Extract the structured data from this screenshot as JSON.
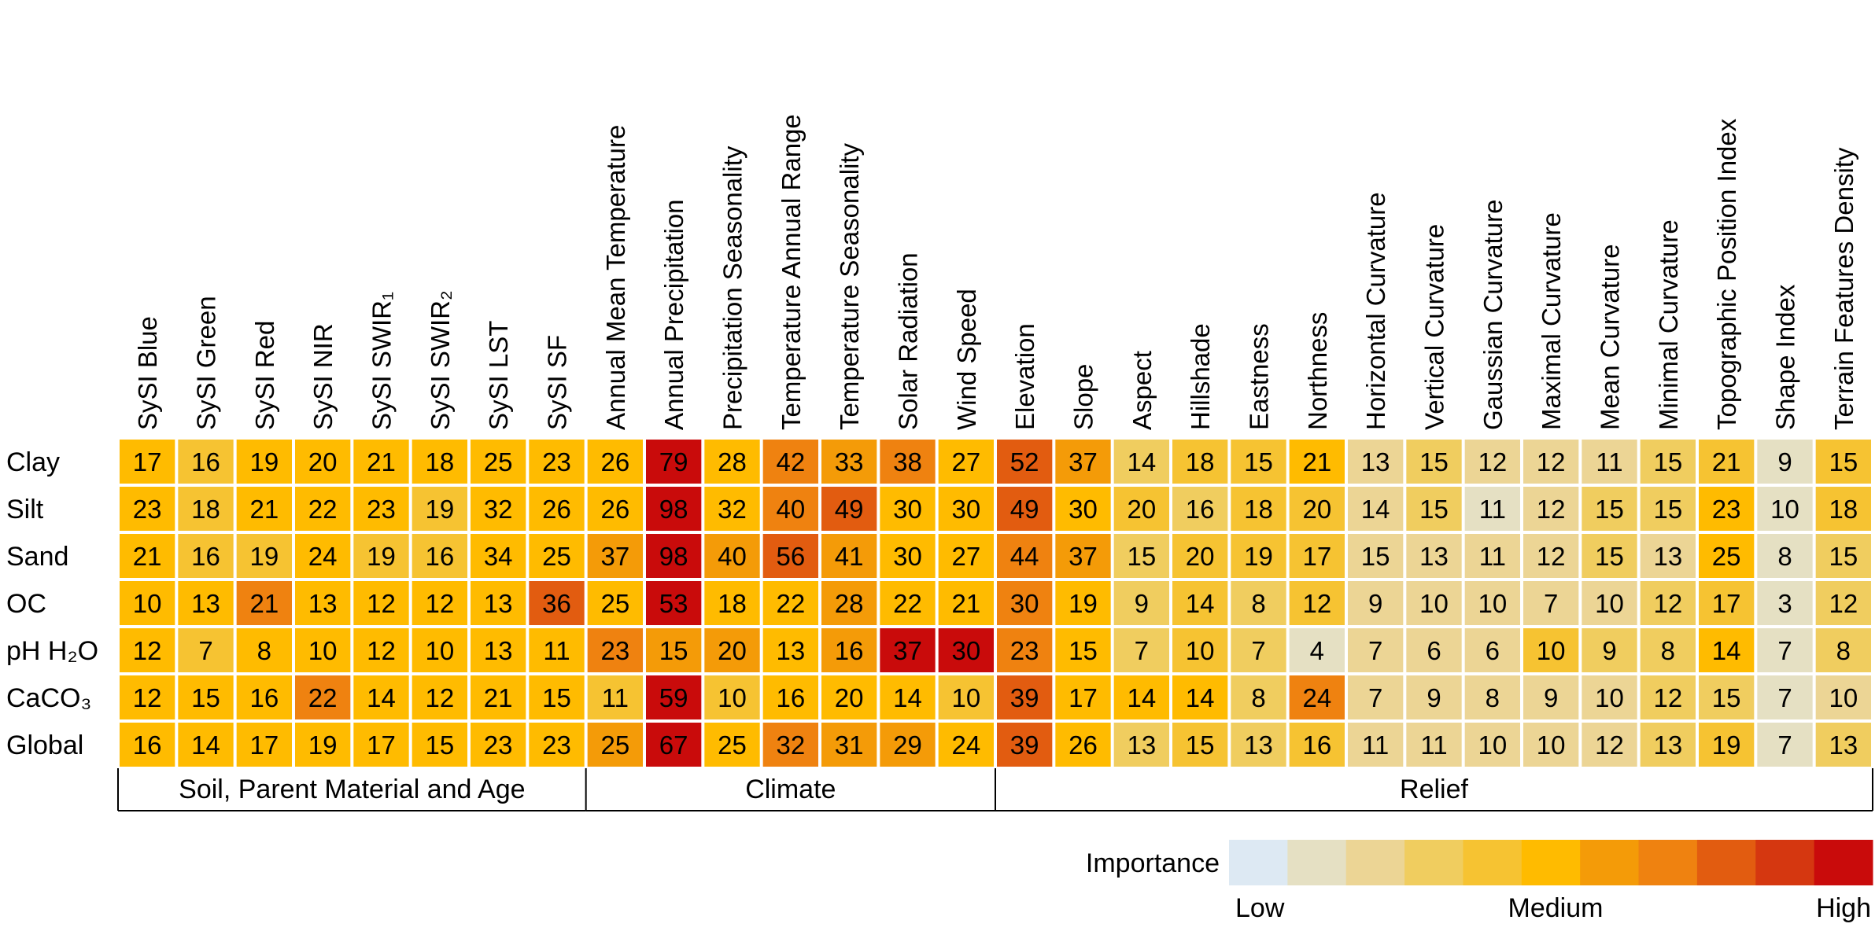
{
  "chart_data": {
    "type": "heatmap",
    "columns": [
      "SySI  Blue",
      "SySI  Green",
      "SySI  Red",
      "SySI  NIR",
      "SySI  SWIR₁",
      "SySI  SWIR₂",
      "SySI  LST",
      "SySI  SF",
      "Annual Mean Temperature",
      "Annual Precipitation",
      "Precipitation Seasonality",
      "Temperature Annual Range",
      "Temperature Seasonality",
      "Solar Radiation",
      "Wind Speed",
      "Elevation",
      "Slope",
      "Aspect",
      "Hillshade",
      "Eastness",
      "Northness",
      "Horizontal Curvature",
      "Vertical Curvature",
      "Gaussian Curvature",
      "Maximal Curvature",
      "Mean Curvature",
      "Minimal Curvature",
      "Topographic Position Index",
      "Shape Index",
      "Terrain Features Density"
    ],
    "rows": [
      "Clay",
      "Silt",
      "Sand",
      "OC",
      "pH H₂O",
      "CaCO₃",
      "Global"
    ],
    "values": [
      [
        17,
        16,
        19,
        20,
        21,
        18,
        25,
        23,
        26,
        79,
        28,
        42,
        33,
        38,
        27,
        52,
        37,
        14,
        18,
        15,
        21,
        13,
        15,
        12,
        12,
        11,
        15,
        21,
        9,
        15
      ],
      [
        23,
        18,
        21,
        22,
        23,
        19,
        32,
        26,
        26,
        98,
        32,
        40,
        49,
        30,
        30,
        49,
        30,
        20,
        16,
        18,
        20,
        14,
        15,
        11,
        12,
        15,
        15,
        23,
        10,
        18
      ],
      [
        21,
        16,
        19,
        24,
        19,
        16,
        34,
        25,
        37,
        98,
        40,
        56,
        41,
        30,
        27,
        44,
        37,
        15,
        20,
        19,
        17,
        15,
        13,
        11,
        12,
        15,
        13,
        25,
        8,
        15
      ],
      [
        10,
        13,
        21,
        13,
        12,
        12,
        13,
        36,
        25,
        53,
        18,
        22,
        28,
        22,
        21,
        30,
        19,
        9,
        14,
        8,
        12,
        9,
        10,
        10,
        7,
        10,
        12,
        17,
        3,
        12
      ],
      [
        12,
        7,
        8,
        10,
        12,
        10,
        13,
        11,
        23,
        15,
        20,
        13,
        16,
        37,
        30,
        23,
        15,
        7,
        10,
        7,
        4,
        7,
        6,
        6,
        10,
        9,
        8,
        14,
        7,
        8
      ],
      [
        12,
        15,
        16,
        22,
        14,
        12,
        21,
        15,
        11,
        59,
        10,
        16,
        20,
        14,
        10,
        39,
        17,
        14,
        14,
        8,
        24,
        7,
        9,
        8,
        9,
        10,
        12,
        15,
        7,
        10
      ],
      [
        16,
        14,
        17,
        19,
        17,
        15,
        23,
        23,
        25,
        67,
        25,
        32,
        31,
        29,
        24,
        39,
        26,
        13,
        15,
        13,
        16,
        11,
        11,
        10,
        10,
        12,
        13,
        19,
        7,
        13
      ]
    ],
    "levels": [
      [
        5,
        4,
        5,
        5,
        5,
        5,
        5,
        5,
        5,
        10,
        5,
        7,
        6,
        7,
        5,
        8,
        6,
        3,
        4,
        4,
        5,
        2,
        3,
        2,
        2,
        2,
        3,
        4,
        1,
        4
      ],
      [
        5,
        4,
        5,
        5,
        5,
        4,
        5,
        5,
        5,
        10,
        5,
        7,
        8,
        5,
        5,
        8,
        5,
        4,
        3,
        4,
        4,
        2,
        3,
        1,
        2,
        3,
        3,
        5,
        1,
        4
      ],
      [
        5,
        4,
        4,
        5,
        4,
        4,
        5,
        5,
        6,
        10,
        6,
        8,
        6,
        5,
        5,
        7,
        6,
        3,
        4,
        4,
        4,
        2,
        2,
        2,
        2,
        3,
        2,
        5,
        1,
        3
      ],
      [
        5,
        5,
        7,
        5,
        5,
        5,
        5,
        8,
        5,
        10,
        5,
        5,
        6,
        5,
        5,
        7,
        5,
        3,
        4,
        3,
        4,
        2,
        2,
        2,
        2,
        2,
        3,
        4,
        1,
        3
      ],
      [
        5,
        4,
        5,
        5,
        5,
        5,
        5,
        5,
        7,
        6,
        6,
        5,
        6,
        10,
        10,
        7,
        5,
        3,
        4,
        3,
        1,
        2,
        2,
        2,
        4,
        3,
        3,
        5,
        1,
        3
      ],
      [
        5,
        5,
        5,
        7,
        5,
        5,
        5,
        5,
        4,
        10,
        4,
        5,
        5,
        5,
        4,
        8,
        5,
        5,
        5,
        3,
        7,
        2,
        2,
        2,
        2,
        2,
        3,
        3,
        1,
        2
      ],
      [
        5,
        5,
        5,
        5,
        5,
        5,
        5,
        5,
        6,
        10,
        5,
        7,
        6,
        6,
        5,
        8,
        5,
        3,
        4,
        3,
        4,
        2,
        2,
        2,
        2,
        2,
        3,
        4,
        1,
        3
      ]
    ],
    "groups": [
      {
        "label": "Soil, Parent Material and Age",
        "start": 0,
        "end": 7
      },
      {
        "label": "Climate",
        "start": 8,
        "end": 14
      },
      {
        "label": "Relief",
        "start": 15,
        "end": 29
      }
    ],
    "legend": {
      "title": "Importance",
      "low_label": "Low",
      "mid_label": "Medium",
      "high_label": "High",
      "colors": [
        "#dde9f3",
        "#e5e0c3",
        "#ecd595",
        "#f0cd5f",
        "#f6c332",
        "#ffbb00",
        "#f49b08",
        "#ef8210",
        "#e25c10",
        "#d53710",
        "#c90b0b"
      ]
    }
  }
}
